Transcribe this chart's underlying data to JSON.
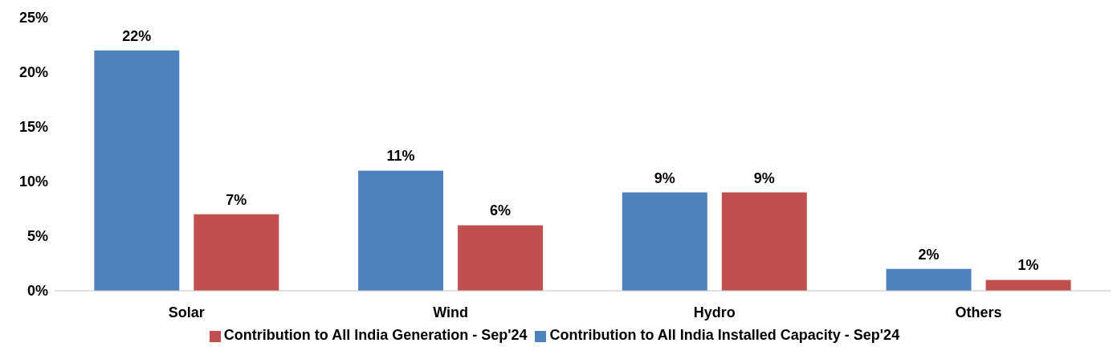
{
  "chart_data": {
    "type": "bar",
    "categories": [
      "Solar",
      "Wind",
      "Hydro",
      "Others"
    ],
    "series": [
      {
        "name": "Contribution to All India Installed Capacity - Sep'24",
        "color": "#4f81bd",
        "values": [
          22,
          11,
          9,
          2
        ],
        "value_labels": [
          "22%",
          "11%",
          "9%",
          "2%"
        ]
      },
      {
        "name": "Contribution to All India Generation - Sep'24",
        "color": "#c0504d",
        "values": [
          7,
          6,
          9,
          1
        ],
        "value_labels": [
          "7%",
          "6%",
          "9%",
          "1%"
        ]
      }
    ],
    "ylim": [
      0,
      25
    ],
    "yticks": [
      {
        "value": 0,
        "label": "0%"
      },
      {
        "value": 5,
        "label": "5%"
      },
      {
        "value": 10,
        "label": "10%"
      },
      {
        "value": 15,
        "label": "15%"
      },
      {
        "value": 20,
        "label": "20%"
      },
      {
        "value": 25,
        "label": "25%"
      }
    ],
    "grid": false,
    "legend": "bottom"
  }
}
